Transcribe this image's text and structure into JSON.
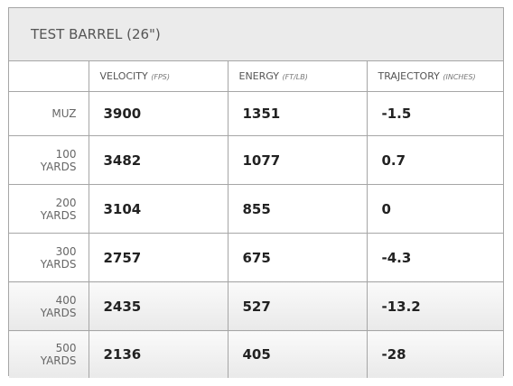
{
  "header": {
    "title": "TEST BARREL (26\")"
  },
  "table": {
    "columns": [
      {
        "label": "VELOCITY",
        "unit": "(FPS)"
      },
      {
        "label": "ENERGY",
        "unit": "(FT/LB)"
      },
      {
        "label": "TRAJECTORY",
        "unit": "(INCHES)"
      }
    ],
    "rows": [
      {
        "label": "MUZ",
        "values": [
          3900,
          1351,
          -1.5
        ]
      },
      {
        "label": "100 YARDS",
        "values": [
          3482,
          1077,
          0.7
        ]
      },
      {
        "label": "200 YARDS",
        "values": [
          3104,
          855,
          0
        ]
      },
      {
        "label": "300 YARDS",
        "values": [
          2757,
          675,
          -4.3
        ]
      },
      {
        "label": "400 YARDS",
        "values": [
          2435,
          527,
          -13.2
        ]
      },
      {
        "label": "500 YARDS",
        "values": [
          2136,
          405,
          -28
        ]
      }
    ]
  }
}
